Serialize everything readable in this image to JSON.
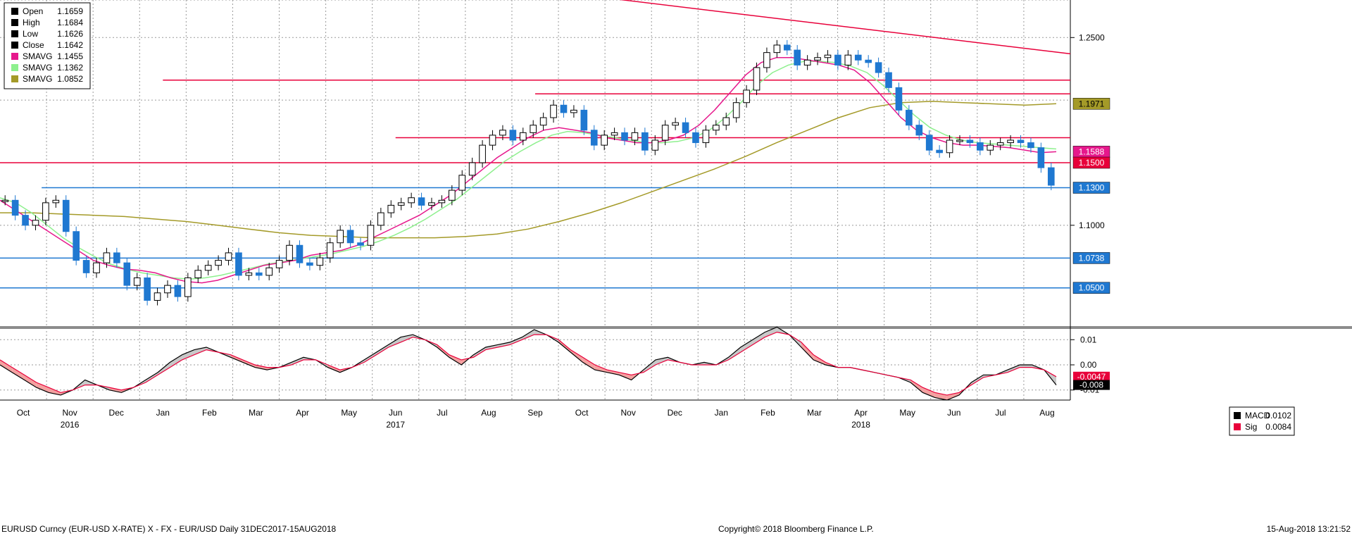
{
  "chart_data": {
    "type": "candlestick",
    "legend": {
      "items": [
        {
          "label": "Open",
          "value": "1.1659",
          "color": "#000000"
        },
        {
          "label": "High",
          "value": "1.1684",
          "color": "#000000"
        },
        {
          "label": "Low",
          "value": "1.1626",
          "color": "#000000"
        },
        {
          "label": "Close",
          "value": "1.1642",
          "color": "#000000"
        },
        {
          "label": "SMAVG",
          "value": "1.1455",
          "color": "#e6188c"
        },
        {
          "label": "SMAVG",
          "value": "1.1362",
          "color": "#8ef08e"
        },
        {
          "label": "SMAVG",
          "value": "1.0852",
          "color": "#a49a28"
        }
      ]
    },
    "y_axis": {
      "ticks": [
        "1.2500",
        "1.1000"
      ],
      "range": [
        1.02,
        1.28
      ]
    },
    "price_tags": [
      {
        "label": "1.1971",
        "value": 1.1971,
        "bg": "#a49a28",
        "fg": "#000000"
      },
      {
        "label": "1.1588",
        "value": 1.1588,
        "bg": "#e6188c",
        "fg": "#ffffff"
      },
      {
        "label": "1.1500",
        "value": 1.15,
        "bg": "#e8003a",
        "fg": "#ffffff"
      },
      {
        "label": "1.1300",
        "value": 1.13,
        "bg": "#1f78d1",
        "fg": "#ffffff"
      },
      {
        "label": "1.0738",
        "value": 1.0738,
        "bg": "#1f78d1",
        "fg": "#ffffff"
      },
      {
        "label": "1.0500",
        "value": 1.05,
        "bg": "#1f78d1",
        "fg": "#ffffff"
      }
    ],
    "horizontal_levels": [
      {
        "value": 1.13,
        "color": "#1f78d1",
        "x_start": "Oct"
      },
      {
        "value": 1.0738,
        "color": "#1f78d1",
        "x_start": "Oct"
      },
      {
        "value": 1.05,
        "color": "#1f78d1",
        "x_start": "Oct"
      },
      {
        "value": 1.15,
        "color": "#e8003a",
        "x_start": "Oct"
      },
      {
        "value": 1.216,
        "color": "#e8003a",
        "x_start": "Jan"
      },
      {
        "value": 1.205,
        "color": "#e8003a",
        "x_start": "Sep"
      },
      {
        "value": 1.17,
        "color": "#e8003a",
        "x_start": "Jun"
      }
    ],
    "trendline": {
      "from": [
        0.435,
        1.283
      ],
      "to": [
        1.0,
        1.237
      ],
      "color": "#e8003a"
    },
    "x_axis": {
      "months": [
        "Oct",
        "Nov",
        "Dec",
        "Jan",
        "Feb",
        "Mar",
        "Apr",
        "May",
        "Jun",
        "Jul",
        "Aug",
        "Sep",
        "Oct",
        "Nov",
        "Dec",
        "Jan",
        "Feb",
        "Mar",
        "Apr",
        "May",
        "Jun",
        "Jul",
        "Aug"
      ],
      "years": [
        {
          "label": "2016",
          "month_index": 1
        },
        {
          "label": "2017",
          "month_index": 8
        },
        {
          "label": "2018",
          "month_index": 18
        }
      ]
    },
    "price_series": [
      1.12,
      1.108,
      1.1,
      1.104,
      1.118,
      1.12,
      1.095,
      1.072,
      1.062,
      1.07,
      1.078,
      1.07,
      1.052,
      1.058,
      1.04,
      1.046,
      1.052,
      1.043,
      1.058,
      1.064,
      1.068,
      1.072,
      1.078,
      1.06,
      1.062,
      1.06,
      1.066,
      1.072,
      1.084,
      1.07,
      1.068,
      1.074,
      1.086,
      1.096,
      1.086,
      1.084,
      1.1,
      1.11,
      1.116,
      1.118,
      1.122,
      1.116,
      1.118,
      1.12,
      1.128,
      1.14,
      1.15,
      1.164,
      1.172,
      1.176,
      1.168,
      1.174,
      1.18,
      1.186,
      1.196,
      1.19,
      1.192,
      1.176,
      1.164,
      1.172,
      1.174,
      1.168,
      1.174,
      1.16,
      1.168,
      1.18,
      1.182,
      1.174,
      1.166,
      1.176,
      1.18,
      1.186,
      1.198,
      1.208,
      1.226,
      1.238,
      1.244,
      1.24,
      1.228,
      1.232,
      1.234,
      1.236,
      1.228,
      1.236,
      1.232,
      1.23,
      1.222,
      1.21,
      1.192,
      1.18,
      1.172,
      1.16,
      1.158,
      1.168,
      1.168,
      1.166,
      1.16,
      1.164,
      1.166,
      1.168,
      1.166,
      1.162,
      1.146,
      1.132
    ],
    "sma_pink": [
      1.12,
      1.112,
      1.104,
      1.096,
      1.088,
      1.08,
      1.072,
      1.068,
      1.065,
      1.064,
      1.062,
      1.058,
      1.055,
      1.054,
      1.056,
      1.06,
      1.064,
      1.068,
      1.07,
      1.072,
      1.076,
      1.078,
      1.08,
      1.084,
      1.09,
      1.096,
      1.102,
      1.108,
      1.116,
      1.124,
      1.134,
      1.144,
      1.154,
      1.162,
      1.17,
      1.176,
      1.178,
      1.176,
      1.174,
      1.17,
      1.168,
      1.166,
      1.166,
      1.168,
      1.172,
      1.18,
      1.192,
      1.206,
      1.22,
      1.23,
      1.234,
      1.234,
      1.232,
      1.23,
      1.228,
      1.224,
      1.214,
      1.2,
      1.186,
      1.176,
      1.17,
      1.166,
      1.164,
      1.164,
      1.163,
      1.162,
      1.16,
      1.158,
      1.1588
    ],
    "sma_green": [
      1.122,
      1.118,
      1.11,
      1.1,
      1.09,
      1.082,
      1.075,
      1.069,
      1.065,
      1.062,
      1.06,
      1.058,
      1.057,
      1.058,
      1.06,
      1.063,
      1.066,
      1.069,
      1.071,
      1.073,
      1.075,
      1.077,
      1.08,
      1.083,
      1.087,
      1.092,
      1.098,
      1.105,
      1.113,
      1.121,
      1.131,
      1.141,
      1.151,
      1.159,
      1.166,
      1.172,
      1.175,
      1.174,
      1.172,
      1.17,
      1.168,
      1.166,
      1.166,
      1.167,
      1.17,
      1.176,
      1.186,
      1.198,
      1.212,
      1.222,
      1.228,
      1.231,
      1.231,
      1.23,
      1.227,
      1.222,
      1.212,
      1.2,
      1.188,
      1.178,
      1.172,
      1.168,
      1.166,
      1.165,
      1.164,
      1.163,
      1.162,
      1.161
    ],
    "sma_olive": [
      1.11,
      1.11,
      1.109,
      1.108,
      1.107,
      1.105,
      1.103,
      1.1,
      1.097,
      1.094,
      1.092,
      1.091,
      1.09,
      1.09,
      1.09,
      1.091,
      1.093,
      1.097,
      1.103,
      1.11,
      1.118,
      1.127,
      1.136,
      1.145,
      1.155,
      1.166,
      1.176,
      1.186,
      1.194,
      1.198,
      1.199,
      1.198,
      1.197,
      1.196,
      1.1971
    ],
    "macd": {
      "legend": [
        {
          "label": "MACD",
          "value": "0.0102",
          "color": "#000000"
        },
        {
          "label": "Sig",
          "value": "0.0084",
          "color": "#e8003a"
        }
      ],
      "ticks": [
        "0.01",
        "0.00",
        "-0.01"
      ],
      "range": [
        -0.014,
        0.014
      ],
      "tags": [
        {
          "label": "-0.0047",
          "value": -0.0047,
          "bg": "#e8003a",
          "fg": "#ffffff"
        },
        {
          "label": "-0.008",
          "value": -0.008,
          "bg": "#000000",
          "fg": "#ffffff"
        }
      ],
      "macd_series": [
        0.0,
        -0.003,
        -0.006,
        -0.009,
        -0.011,
        -0.012,
        -0.01,
        -0.006,
        -0.008,
        -0.01,
        -0.011,
        -0.009,
        -0.006,
        -0.003,
        0.001,
        0.004,
        0.006,
        0.007,
        0.005,
        0.003,
        0.001,
        -0.001,
        -0.002,
        -0.001,
        0.001,
        0.003,
        0.002,
        -0.001,
        -0.003,
        -0.001,
        0.002,
        0.005,
        0.008,
        0.011,
        0.012,
        0.01,
        0.007,
        0.003,
        0.0,
        0.004,
        0.007,
        0.008,
        0.009,
        0.011,
        0.014,
        0.012,
        0.009,
        0.005,
        0.001,
        -0.002,
        -0.003,
        -0.004,
        -0.006,
        -0.002,
        0.002,
        0.003,
        0.001,
        0.0,
        0.001,
        0.0,
        0.003,
        0.007,
        0.01,
        0.013,
        0.015,
        0.012,
        0.007,
        0.002,
        0.0,
        -0.001,
        -0.001,
        -0.002,
        -0.003,
        -0.004,
        -0.005,
        -0.007,
        -0.011,
        -0.013,
        -0.014,
        -0.012,
        -0.007,
        -0.004,
        -0.004,
        -0.002,
        0.0,
        0.0,
        -0.002,
        -0.008
      ],
      "sig_series": [
        0.002,
        -0.001,
        -0.004,
        -0.007,
        -0.009,
        -0.011,
        -0.01,
        -0.008,
        -0.008,
        -0.009,
        -0.01,
        -0.009,
        -0.007,
        -0.004,
        -0.001,
        0.002,
        0.004,
        0.006,
        0.005,
        0.004,
        0.002,
        0.0,
        -0.001,
        -0.001,
        0.0,
        0.002,
        0.002,
        0.0,
        -0.002,
        -0.001,
        0.001,
        0.004,
        0.007,
        0.009,
        0.011,
        0.01,
        0.008,
        0.004,
        0.002,
        0.003,
        0.006,
        0.007,
        0.008,
        0.01,
        0.012,
        0.012,
        0.01,
        0.006,
        0.003,
        0.0,
        -0.002,
        -0.003,
        -0.004,
        -0.003,
        0.0,
        0.002,
        0.001,
        0.0,
        0.0,
        0.0,
        0.002,
        0.005,
        0.008,
        0.011,
        0.013,
        0.012,
        0.009,
        0.004,
        0.001,
        -0.001,
        -0.001,
        -0.002,
        -0.003,
        -0.004,
        -0.005,
        -0.006,
        -0.009,
        -0.011,
        -0.012,
        -0.011,
        -0.008,
        -0.005,
        -0.004,
        -0.003,
        -0.001,
        -0.001,
        -0.002,
        -0.0047
      ]
    }
  },
  "footer": {
    "left": "EURUSD Curncy (EUR-USD X-RATE) X - FX - EUR/USD  Daily 31DEC2017-15AUG2018",
    "center": "Copyright© 2018 Bloomberg Finance L.P.",
    "right": "15-Aug-2018 13:21:52"
  }
}
